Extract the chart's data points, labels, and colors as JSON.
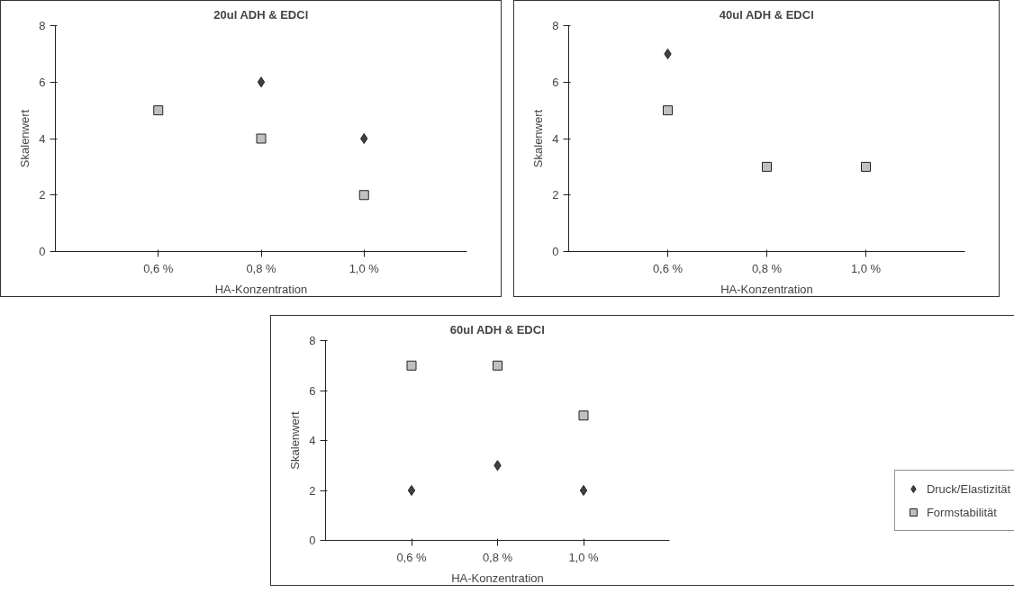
{
  "chart_data": [
    {
      "type": "scatter",
      "title": "20ul ADH & EDCl",
      "xlabel": "HA-Konzentration",
      "ylabel": "Skalenwert",
      "categories": [
        "0,6 %",
        "0,8 %",
        "1,0 %"
      ],
      "ylim": [
        0,
        8
      ],
      "yticks": [
        0,
        2,
        4,
        6,
        8
      ],
      "grid": false,
      "legend": false,
      "series": [
        {
          "color": "#404040",
          "marker": "diamond",
          "values": [
            null,
            6,
            4
          ]
        },
        {
          "color": "#c0c0c0",
          "marker": "square",
          "values": [
            5,
            4,
            2
          ]
        }
      ]
    },
    {
      "type": "scatter",
      "title": "40ul ADH & EDCl",
      "xlabel": "HA-Konzentration",
      "ylabel": "Skalenwert",
      "categories": [
        "0,6 %",
        "0,8 %",
        "1,0 %"
      ],
      "ylim": [
        0,
        8
      ],
      "yticks": [
        0,
        2,
        4,
        6,
        8
      ],
      "grid": false,
      "legend": false,
      "series": [
        {
          "color": "#404040",
          "marker": "diamond",
          "values": [
            7,
            null,
            null
          ]
        },
        {
          "color": "#c0c0c0",
          "marker": "square",
          "values": [
            5,
            3,
            3
          ]
        }
      ]
    },
    {
      "type": "scatter",
      "title": "60ul ADH & EDCl",
      "xlabel": "HA-Konzentration",
      "ylabel": "Skalenwert",
      "categories": [
        "0,6 %",
        "0,8 %",
        "1,0 %"
      ],
      "ylim": [
        0,
        8
      ],
      "yticks": [
        0,
        2,
        4,
        6,
        8
      ],
      "grid": false,
      "legend": "bottom right",
      "series": [
        {
          "name": "Druck/Elastizität",
          "color": "#404040",
          "marker": "diamond",
          "values": [
            2,
            3,
            2
          ]
        },
        {
          "name": "Formstabilität",
          "color": "#c0c0c0",
          "marker": "square",
          "values": [
            7,
            7,
            5
          ]
        }
      ]
    }
  ]
}
